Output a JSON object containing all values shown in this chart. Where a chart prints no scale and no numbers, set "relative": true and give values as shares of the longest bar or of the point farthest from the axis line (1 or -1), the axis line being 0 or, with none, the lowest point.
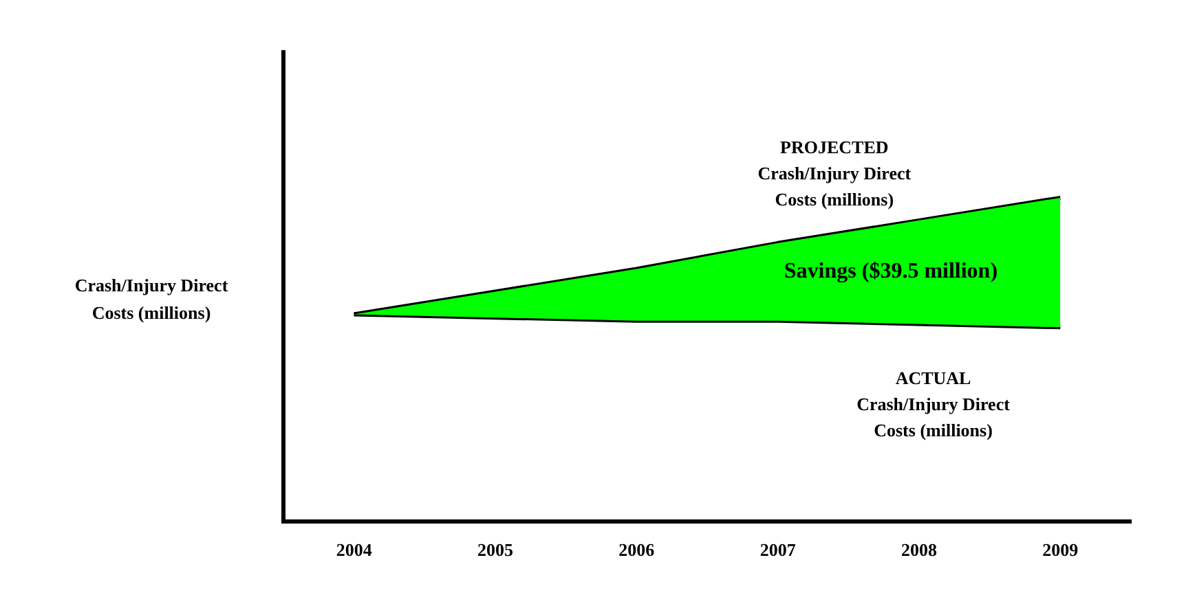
{
  "chart_data": {
    "type": "line",
    "relative": true,
    "ylabel": "Crash/Injury Direct\nCosts (millions)",
    "categories": [
      "2004",
      "2005",
      "2006",
      "2007",
      "2008",
      "2009"
    ],
    "series": [
      {
        "name": "PROJECTED\nCrash/Injury Direct\nCosts (millions)",
        "color": "#000000",
        "values": [
          0.64,
          0.71,
          0.78,
          0.86,
          0.93,
          1.0
        ],
        "lower": [
          0.64,
          0.63,
          0.62,
          0.62,
          0.61,
          0.6
        ],
        "upper": [
          0.64,
          0.71,
          0.78,
          0.86,
          0.93,
          1.0
        ]
      },
      {
        "name": "ACTUAL\nCrash/Injury Direct\nCosts (millions)",
        "color": "#000000",
        "values": [
          0.64,
          0.63,
          0.62,
          0.62,
          0.61,
          0.6
        ]
      }
    ],
    "annotations": [
      "Savings ($39.5 million)"
    ],
    "grid": false,
    "legend": false,
    "marker": "none",
    "line_style": "solid"
  }
}
